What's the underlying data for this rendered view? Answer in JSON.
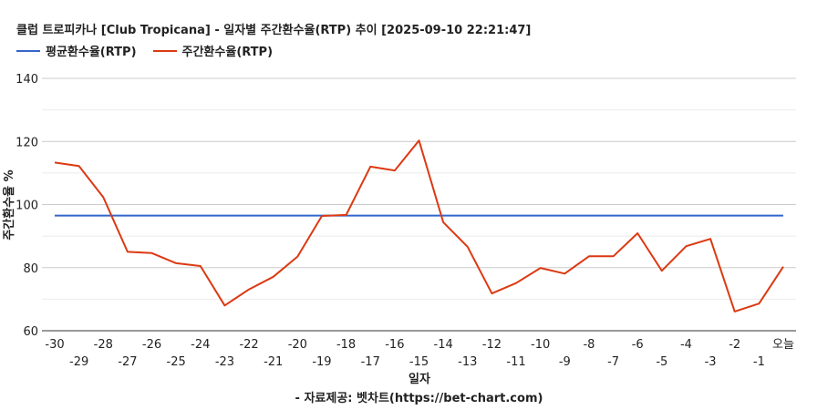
{
  "chart_data": {
    "type": "line",
    "title": "클럽 트로피카나 [Club Tropicana] - 일자별 주간환수율(RTP) 추이 [2025-09-10 22:21:47]",
    "xlabel": "일자",
    "ylabel": "주간환수율 %",
    "ylim": [
      60,
      140
    ],
    "yticks": [
      60,
      80,
      100,
      120,
      140
    ],
    "grid": true,
    "legend_position": "top-left",
    "categories": [
      "-30",
      "-29",
      "-28",
      "-27",
      "-26",
      "-25",
      "-24",
      "-23",
      "-22",
      "-21",
      "-20",
      "-19",
      "-18",
      "-17",
      "-16",
      "-15",
      "-14",
      "-13",
      "-12",
      "-11",
      "-10",
      "-9",
      "-8",
      "-7",
      "-6",
      "-5",
      "-4",
      "-3",
      "-2",
      "-1",
      "오늘"
    ],
    "series": [
      {
        "name": "평균환수율(RTP)",
        "color": "#3366cc",
        "values": [
          96.5,
          96.5,
          96.5,
          96.5,
          96.5,
          96.5,
          96.5,
          96.5,
          96.5,
          96.5,
          96.5,
          96.5,
          96.5,
          96.5,
          96.5,
          96.5,
          96.5,
          96.5,
          96.5,
          96.5,
          96.5,
          96.5,
          96.5,
          96.5,
          96.5,
          96.5,
          96.5,
          96.5,
          96.5,
          96.5,
          96.5
        ]
      },
      {
        "name": "주간환수율(RTP)",
        "color": "#dc3912",
        "values": [
          113.3,
          112.2,
          102.3,
          85.0,
          84.6,
          81.4,
          80.5,
          68.0,
          73.1,
          77.1,
          83.5,
          96.4,
          96.7,
          112.0,
          110.8,
          120.3,
          94.4,
          86.6,
          71.8,
          75.1,
          79.9,
          78.1,
          83.6,
          83.6,
          90.9,
          79.0,
          86.8,
          89.1,
          66.1,
          68.6,
          80.3
        ]
      }
    ]
  },
  "footer": {
    "source": "- 자료제공: 벳차트(https://bet-chart.com)"
  }
}
